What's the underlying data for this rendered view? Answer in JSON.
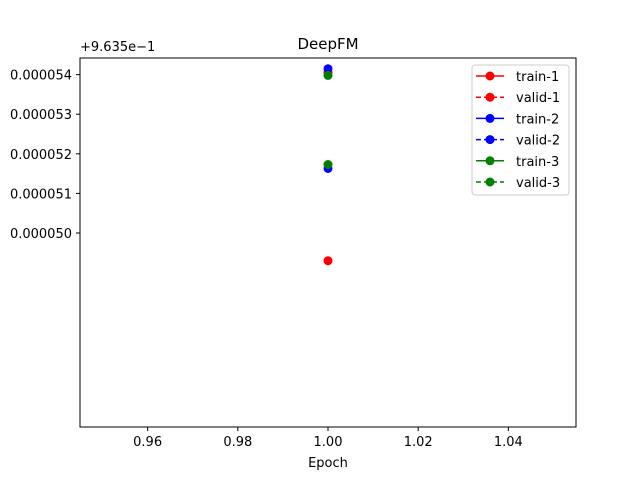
{
  "chart_data": {
    "type": "line",
    "title": "DeepFM",
    "xlabel": "Epoch",
    "ylabel": "",
    "offset_label": "+9.635e−1",
    "xlim": [
      0.945,
      1.055
    ],
    "ylim": [
      4.51e-05,
      5.442e-05
    ],
    "x_ticks": [
      0.96,
      0.98,
      1.0,
      1.02,
      1.04
    ],
    "x_tick_labels": [
      "0.96",
      "0.98",
      "1.00",
      "1.02",
      "1.04"
    ],
    "y_ticks": [
      5e-05,
      5.1e-05,
      5.2e-05,
      5.3e-05,
      5.4e-05
    ],
    "y_tick_labels": [
      "0.000050",
      "0.000051",
      "0.000052",
      "0.000053",
      "0.000054"
    ],
    "grid": false,
    "legend_position": "top-right",
    "series": [
      {
        "name": "train-1",
        "color": "#ff0000",
        "linestyle": "solid",
        "x": [
          1.0
        ],
        "y": [
          5.405e-05
        ]
      },
      {
        "name": "valid-1",
        "color": "#ff0000",
        "linestyle": "dashed",
        "x": [
          1.0
        ],
        "y": [
          4.93e-05
        ]
      },
      {
        "name": "train-2",
        "color": "#0000ff",
        "linestyle": "solid",
        "x": [
          1.0
        ],
        "y": [
          5.415e-05
        ]
      },
      {
        "name": "valid-2",
        "color": "#0000ff",
        "linestyle": "dashed",
        "x": [
          1.0
        ],
        "y": [
          5.163e-05
        ]
      },
      {
        "name": "train-3",
        "color": "#008000",
        "linestyle": "solid",
        "x": [
          1.0
        ],
        "y": [
          5.398e-05
        ]
      },
      {
        "name": "valid-3",
        "color": "#008000",
        "linestyle": "dashed",
        "x": [
          1.0
        ],
        "y": [
          5.173e-05
        ]
      }
    ]
  }
}
